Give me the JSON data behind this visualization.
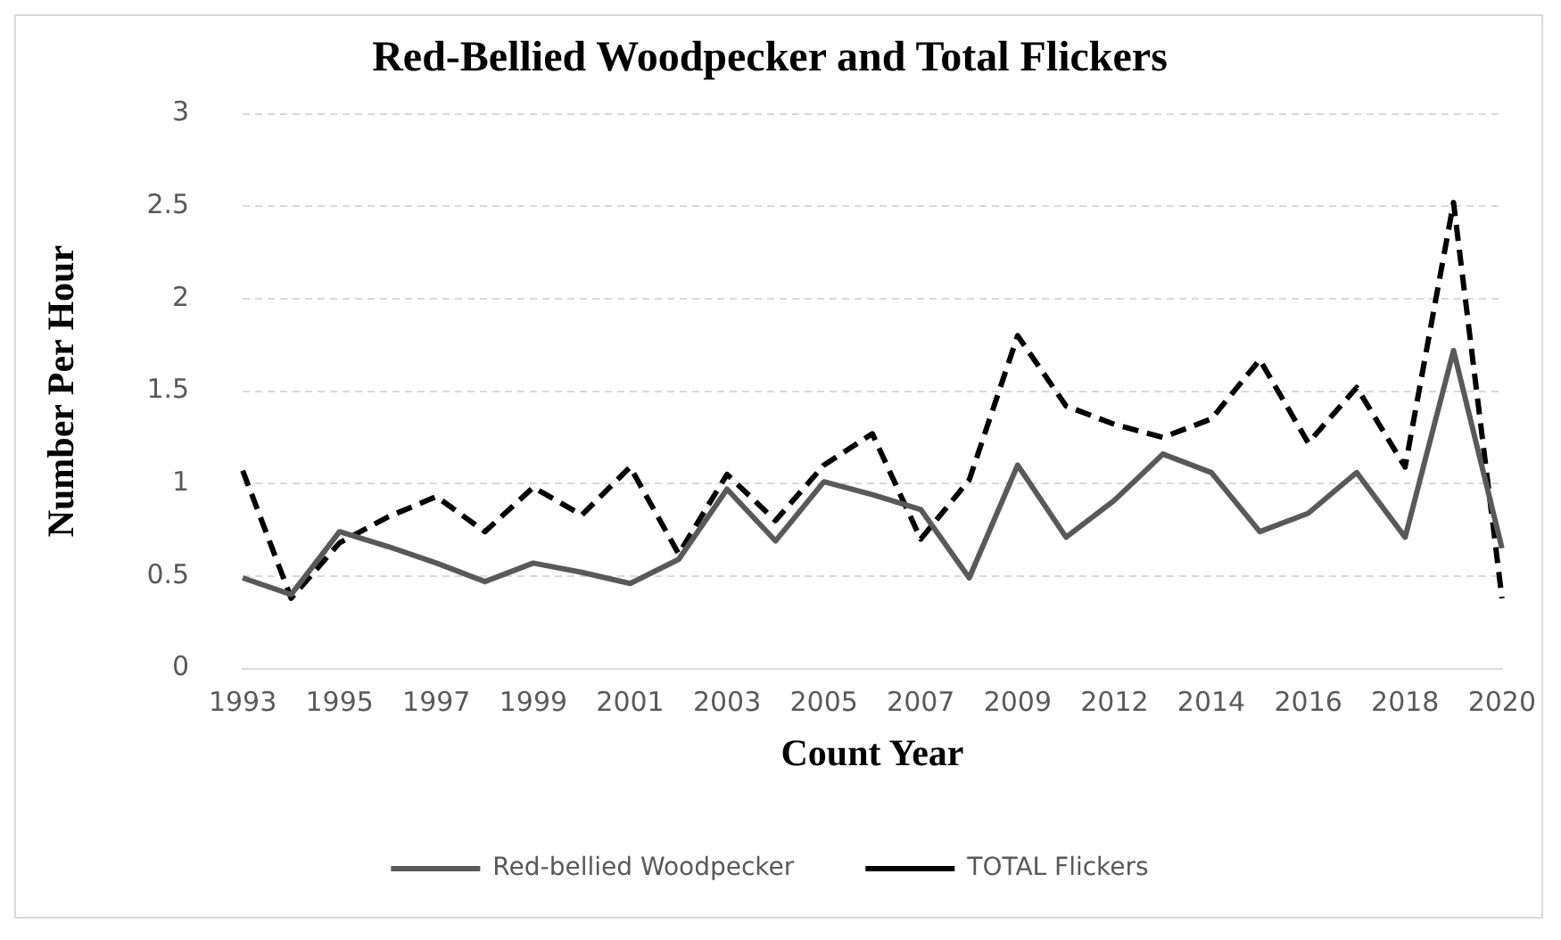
{
  "chart_data": {
    "type": "line",
    "title": "Red-Bellied Woodpecker and Total Flickers",
    "xlabel": "Count Year",
    "ylabel": "Number Per Hour",
    "categories": [
      "1993",
      null,
      "1995",
      null,
      "1997",
      null,
      "1999",
      null,
      "2001",
      null,
      "2003",
      null,
      "2005",
      null,
      "2007",
      null,
      "2009",
      null,
      "2012",
      null,
      "2014",
      null,
      "2016",
      null,
      "2018",
      null,
      "2020"
    ],
    "series": [
      {
        "name": "Red-bellied Woodpecker",
        "color": "#595959",
        "line_style": "solid",
        "values": [
          0.49,
          0.4,
          0.74,
          0.66,
          0.57,
          0.47,
          0.57,
          0.52,
          0.46,
          0.59,
          0.97,
          0.69,
          1.01,
          0.94,
          0.86,
          0.49,
          1.1,
          0.71,
          0.91,
          1.16,
          1.06,
          0.74,
          0.84,
          1.06,
          0.71,
          1.72,
          0.65
        ]
      },
      {
        "name": "TOTAL Flickers",
        "color": "#000000",
        "line_style": "dashed",
        "values": [
          1.07,
          0.38,
          0.68,
          0.82,
          0.93,
          0.74,
          0.98,
          0.83,
          1.09,
          0.62,
          1.05,
          0.8,
          1.1,
          1.27,
          0.7,
          1.02,
          1.8,
          1.42,
          1.32,
          1.25,
          1.35,
          1.67,
          1.22,
          1.52,
          1.09,
          2.52,
          0.38
        ]
      }
    ],
    "ylim": [
      0,
      3
    ],
    "yticks": [
      0,
      0.5,
      1,
      1.5,
      2,
      2.5,
      3
    ],
    "grid": "y",
    "legend": "bottom",
    "marker": "none"
  }
}
